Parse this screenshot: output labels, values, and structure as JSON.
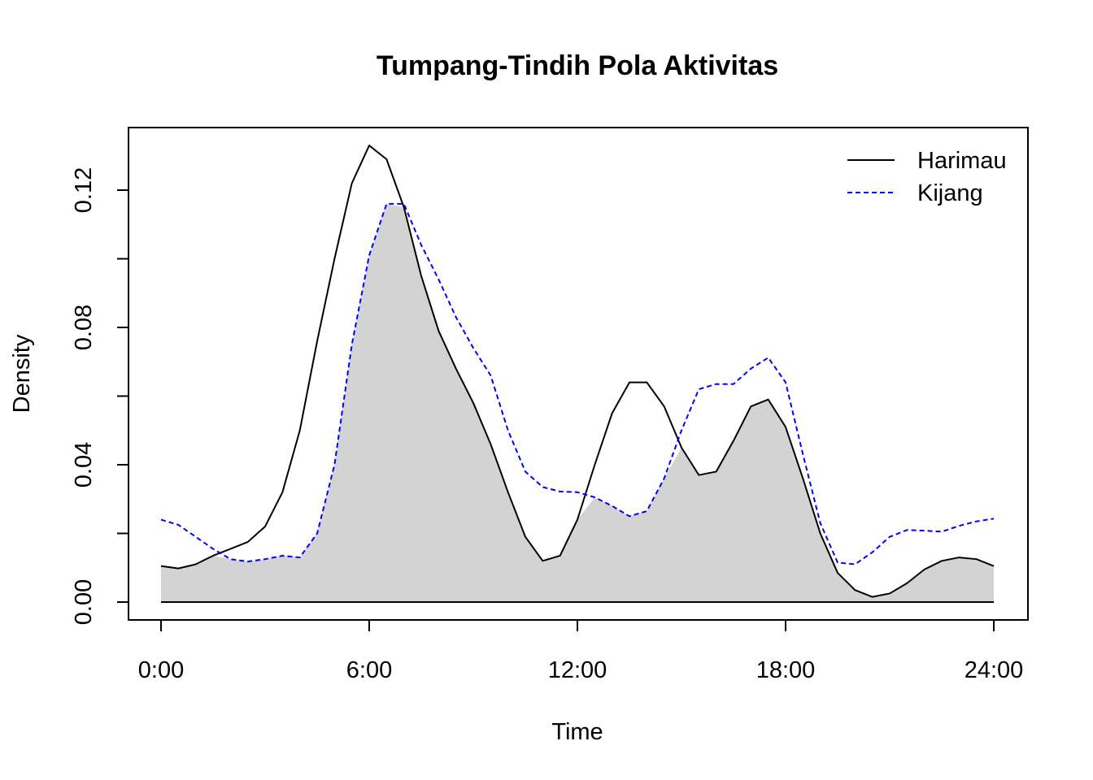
{
  "chart_data": {
    "type": "line",
    "title": "Tumpang-Tindih Pola Aktivitas",
    "xlabel": "Time",
    "ylabel": "Density",
    "xlim": [
      0,
      24
    ],
    "ylim": [
      0,
      0.13
    ],
    "x_ticks": [
      0,
      6,
      12,
      18,
      24
    ],
    "x_tick_labels": [
      "0:00",
      "6:00",
      "12:00",
      "18:00",
      "24:00"
    ],
    "y_ticks": [
      0,
      0.02,
      0.04,
      0.06,
      0.08,
      0.1,
      0.12
    ],
    "y_tick_labels": [
      "0.00",
      "",
      "0.04",
      "",
      "0.08",
      "",
      "0.12"
    ],
    "legend_position": "top-right",
    "overlap_fill_color": "#d3d3d3",
    "series": [
      {
        "name": "Harimau",
        "color": "#000000",
        "line_style": "solid",
        "points": [
          [
            0,
            0.0105
          ],
          [
            0.5,
            0.0098
          ],
          [
            1,
            0.011
          ],
          [
            1.5,
            0.0135
          ],
          [
            2,
            0.0155
          ],
          [
            2.5,
            0.0175
          ],
          [
            3,
            0.022
          ],
          [
            3.5,
            0.032
          ],
          [
            4,
            0.05
          ],
          [
            4.5,
            0.076
          ],
          [
            5,
            0.1
          ],
          [
            5.5,
            0.122
          ],
          [
            6,
            0.133
          ],
          [
            6.5,
            0.129
          ],
          [
            7,
            0.115
          ],
          [
            7.5,
            0.095
          ],
          [
            8,
            0.079
          ],
          [
            8.5,
            0.068
          ],
          [
            9,
            0.058
          ],
          [
            9.5,
            0.046
          ],
          [
            10,
            0.032
          ],
          [
            10.5,
            0.019
          ],
          [
            11,
            0.012
          ],
          [
            11.5,
            0.0135
          ],
          [
            12,
            0.024
          ],
          [
            12.5,
            0.04
          ],
          [
            13,
            0.055
          ],
          [
            13.5,
            0.064
          ],
          [
            14,
            0.064
          ],
          [
            14.5,
            0.057
          ],
          [
            15,
            0.045
          ],
          [
            15.5,
            0.037
          ],
          [
            16,
            0.038
          ],
          [
            16.5,
            0.047
          ],
          [
            17,
            0.057
          ],
          [
            17.5,
            0.059
          ],
          [
            18,
            0.051
          ],
          [
            18.5,
            0.036
          ],
          [
            19,
            0.02
          ],
          [
            19.5,
            0.0085
          ],
          [
            20,
            0.0035
          ],
          [
            20.5,
            0.0015
          ],
          [
            21,
            0.0025
          ],
          [
            21.5,
            0.0055
          ],
          [
            22,
            0.0095
          ],
          [
            22.5,
            0.012
          ],
          [
            23,
            0.013
          ],
          [
            23.5,
            0.0125
          ],
          [
            24,
            0.0105
          ]
        ]
      },
      {
        "name": "Kijang",
        "color": "#0000ff",
        "line_style": "dashed",
        "points": [
          [
            0,
            0.024
          ],
          [
            0.5,
            0.0225
          ],
          [
            1,
            0.019
          ],
          [
            1.5,
            0.0155
          ],
          [
            2,
            0.0125
          ],
          [
            2.5,
            0.0118
          ],
          [
            3,
            0.0125
          ],
          [
            3.5,
            0.0135
          ],
          [
            4,
            0.013
          ],
          [
            4.5,
            0.02
          ],
          [
            5,
            0.04
          ],
          [
            5.5,
            0.075
          ],
          [
            6,
            0.101
          ],
          [
            6.5,
            0.116
          ],
          [
            7,
            0.116
          ],
          [
            7.5,
            0.104
          ],
          [
            8,
            0.094
          ],
          [
            8.5,
            0.083
          ],
          [
            9,
            0.074
          ],
          [
            9.5,
            0.066
          ],
          [
            10,
            0.05
          ],
          [
            10.5,
            0.038
          ],
          [
            11,
            0.0335
          ],
          [
            11.5,
            0.0322
          ],
          [
            12,
            0.032
          ],
          [
            12.5,
            0.0305
          ],
          [
            13,
            0.028
          ],
          [
            13.5,
            0.025
          ],
          [
            14,
            0.0265
          ],
          [
            14.5,
            0.036
          ],
          [
            15,
            0.05
          ],
          [
            15.5,
            0.062
          ],
          [
            16,
            0.0635
          ],
          [
            16.5,
            0.0635
          ],
          [
            17,
            0.068
          ],
          [
            17.5,
            0.0712
          ],
          [
            18,
            0.064
          ],
          [
            18.5,
            0.043
          ],
          [
            19,
            0.023
          ],
          [
            19.5,
            0.0115
          ],
          [
            20,
            0.011
          ],
          [
            20.5,
            0.0145
          ],
          [
            21,
            0.019
          ],
          [
            21.5,
            0.021
          ],
          [
            22,
            0.0208
          ],
          [
            22.5,
            0.0205
          ],
          [
            23,
            0.0222
          ],
          [
            23.5,
            0.0235
          ],
          [
            24,
            0.0243
          ]
        ]
      }
    ]
  }
}
